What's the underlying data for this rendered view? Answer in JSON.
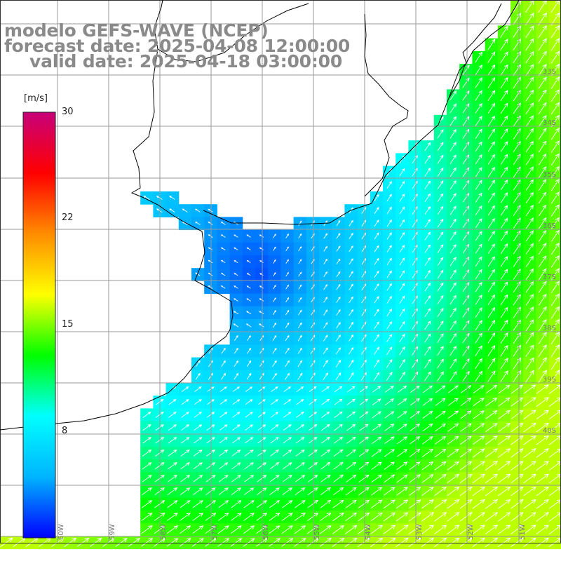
{
  "title": {
    "model": "modelo GEFS-WAVE (NCEP)",
    "forecast": "forecast date: 2025-04-08 12:00:00",
    "valid": "valid date: 2025-04-18 03:00:00"
  },
  "colorbar": {
    "unit": "[m/s]",
    "min": 0,
    "max": 30,
    "ticks": [
      "30",
      "22",
      "15",
      "8"
    ],
    "colors": [
      "#0000ff",
      "#00b4ff",
      "#00ffff",
      "#00ff00",
      "#ffff00",
      "#ff8c00",
      "#ff0000",
      "#c8007a"
    ]
  },
  "map_labels": {
    "lat": [
      "33S",
      "34S",
      "35S",
      "36S",
      "37S",
      "38S",
      "39S",
      "40S"
    ],
    "lon": [
      "60W",
      "59W",
      "58W",
      "57W",
      "56W",
      "55W",
      "54W",
      "53W",
      "52W",
      "51W"
    ]
  },
  "colors": {
    "land": "#ffffff",
    "grid": "#9a9a9a",
    "coast": "#000000",
    "vector": "#ffffff",
    "title": "#8a8a8a"
  }
}
